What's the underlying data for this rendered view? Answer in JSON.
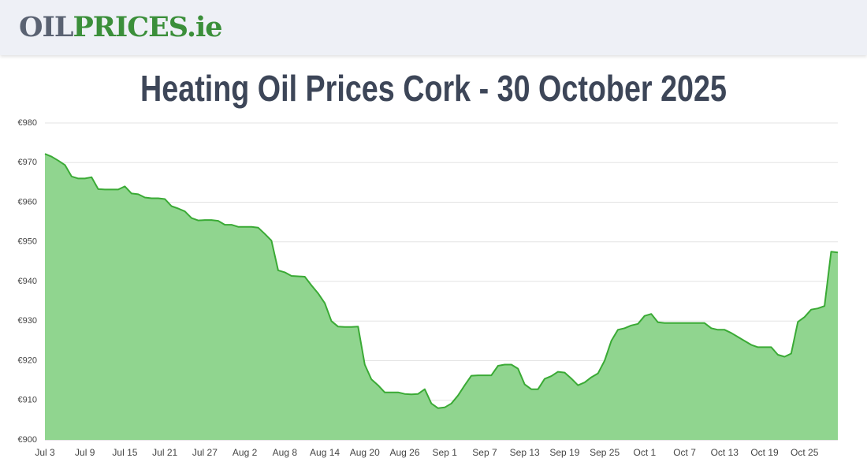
{
  "header": {
    "logo": [
      "OIL",
      "PRICES.ie"
    ]
  },
  "chart_data": {
    "type": "area",
    "title": "Heating Oil Prices Cork - 30 October 2025",
    "color": "#3aaa35",
    "fill": "#90d58f",
    "grid": true,
    "categories": [
      "Jul 3",
      null,
      null,
      null,
      null,
      null,
      "Jul 9",
      null,
      null,
      null,
      null,
      null,
      "Jul 15",
      null,
      null,
      null,
      null,
      null,
      "Jul 21",
      null,
      null,
      null,
      null,
      null,
      "Jul 27",
      null,
      null,
      null,
      null,
      null,
      "Aug 2",
      null,
      null,
      null,
      null,
      null,
      "Aug 8",
      null,
      null,
      null,
      null,
      null,
      "Aug 14",
      null,
      null,
      null,
      null,
      null,
      "Aug 20",
      null,
      null,
      null,
      null,
      null,
      "Aug 26",
      null,
      null,
      null,
      null,
      null,
      "Sep 1",
      null,
      null,
      null,
      null,
      null,
      "Sep 7",
      null,
      null,
      null,
      null,
      null,
      "Sep 13",
      null,
      null,
      null,
      null,
      null,
      "Sep 19",
      null,
      null,
      null,
      null,
      null,
      "Sep 25",
      null,
      null,
      null,
      null,
      null,
      "Oct 1",
      null,
      null,
      null,
      null,
      null,
      "Oct 7",
      null,
      null,
      null,
      null,
      null,
      "Oct 13",
      null,
      null,
      null,
      null,
      null,
      "Oct 19",
      null,
      null,
      null,
      null,
      null,
      "Oct 25",
      null,
      null,
      null,
      null,
      null
    ],
    "values": [
      972.2,
      971.5,
      970.5,
      969.4,
      966.5,
      966,
      966,
      966.3,
      963.3,
      963.2,
      963.2,
      963.2,
      964,
      962.2,
      962,
      961.2,
      961,
      961,
      960.8,
      959,
      958.4,
      957.7,
      956,
      955.4,
      955.5,
      955.5,
      955.3,
      954.3,
      954.3,
      953.8,
      953.8,
      953.8,
      953.6,
      952,
      950.3,
      942.8,
      942.3,
      941.4,
      941.3,
      941.2,
      939,
      937,
      934.5,
      930,
      928.6,
      928.5,
      928.5,
      928.6,
      919,
      915.3,
      913.8,
      912,
      912,
      912,
      911.6,
      911.5,
      911.6,
      912.8,
      909.2,
      908,
      908.2,
      909.2,
      911.2,
      913.8,
      916.2,
      916.3,
      916.3,
      916.3,
      918.7,
      919,
      919,
      918,
      914,
      912.8,
      912.8,
      915.4,
      916.1,
      917.2,
      917,
      915.5,
      913.8,
      914.5,
      915.8,
      916.8,
      920,
      925,
      927.8,
      928.2,
      928.9,
      929.3,
      931.3,
      931.8,
      929.7,
      929.5,
      929.5,
      929.5,
      929.5,
      929.5,
      929.5,
      929.5,
      928.2,
      927.8,
      927.8,
      927,
      926,
      925,
      924,
      923.4,
      923.4,
      923.4,
      921.5,
      921,
      921.8,
      929.8,
      931,
      932.9,
      933.2,
      933.8,
      947.5,
      947.3
    ],
    "ylim": [
      900,
      980
    ],
    "yticks": [
      {
        "value": 900,
        "label": "€900"
      },
      {
        "value": 910,
        "label": "€910"
      },
      {
        "value": 920,
        "label": "€920"
      },
      {
        "value": 930,
        "label": "€930"
      },
      {
        "value": 940,
        "label": "€940"
      },
      {
        "value": 950,
        "label": "€950"
      },
      {
        "value": 960,
        "label": "€960"
      },
      {
        "value": 970,
        "label": "€970"
      },
      {
        "value": 980,
        "label": "€980"
      }
    ]
  }
}
